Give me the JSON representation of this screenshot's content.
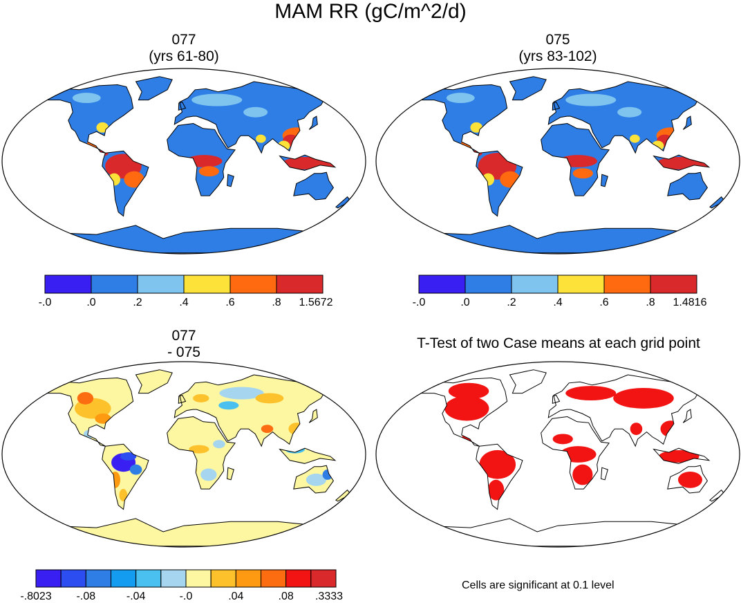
{
  "figure": {
    "title": "MAM RR (gC/m^2/d)"
  },
  "panels": [
    {
      "id": "077",
      "title_line1": "077",
      "title_line2": "(yrs 61-80)"
    },
    {
      "id": "075",
      "title_line1": "075",
      "title_line2": "(yrs 83-102)"
    },
    {
      "id": "diff",
      "title_line1": "077",
      "title_line2": "- 075"
    },
    {
      "id": "ttest",
      "title_line1": "T-Test of two Case means at each grid point"
    }
  ],
  "colorbars": [
    {
      "id": "cb-077",
      "labels": [
        "-.0",
        ".0",
        ".2",
        ".4",
        ".6",
        ".8",
        "1.5672"
      ],
      "colors": [
        "#3a1ff2",
        "#2f7ee6",
        "#7ec4ef",
        "#fde23a",
        "#ff6a10",
        "#d9292b"
      ]
    },
    {
      "id": "cb-075",
      "labels": [
        "-.0",
        ".0",
        ".2",
        ".4",
        ".6",
        ".8",
        "1.4816"
      ],
      "colors": [
        "#3a1ff2",
        "#2f7ee6",
        "#7ec4ef",
        "#fde23a",
        "#ff6a10",
        "#d9292b"
      ]
    },
    {
      "id": "cb-diff",
      "labels": [
        "-.8023",
        "-.08",
        "-.04",
        "-.0",
        ".04",
        ".08",
        ".3333"
      ],
      "colors": [
        "#3a1ff2",
        "#2c4df0",
        "#2f7ee6",
        "#149cf0",
        "#49c0ef",
        "#a6d6ef",
        "#fdf7a2",
        "#fdc12c",
        "#fd9a12",
        "#fc6c10",
        "#f21313",
        "#d9292b"
      ]
    }
  ],
  "ttest_note": "Cells are significant at 0.1 level",
  "map_colors": {
    "land_077": "#2f7ee6",
    "land_075": "#2f7ee6",
    "diff_land": "#fdf7a2",
    "sig": "#f21313"
  }
}
